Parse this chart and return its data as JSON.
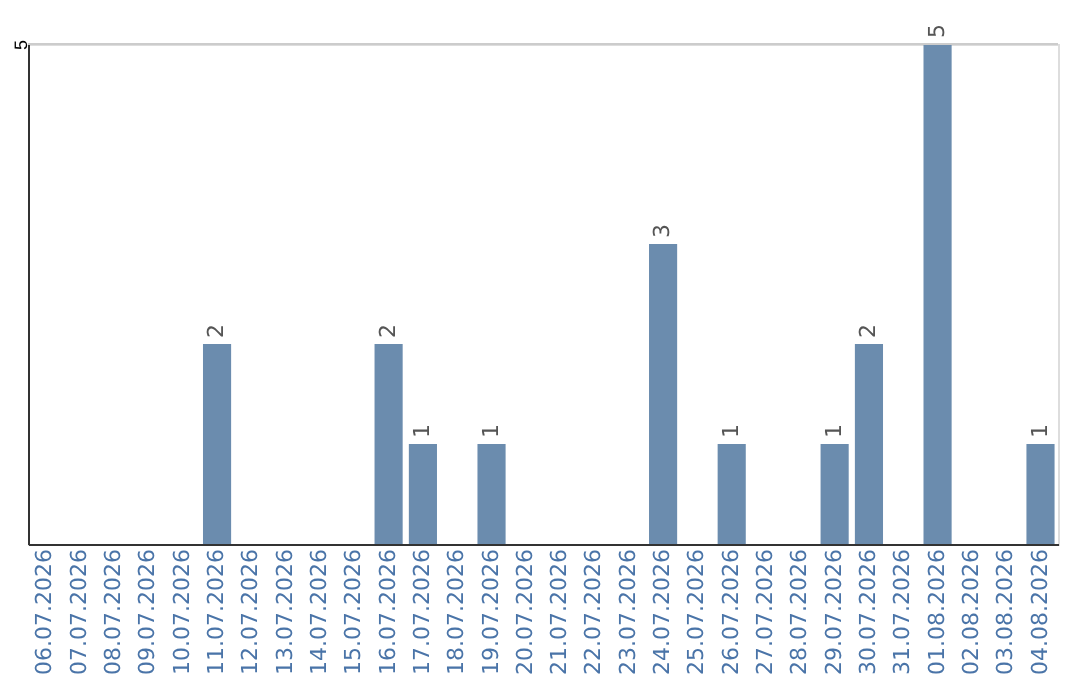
{
  "chart_data": {
    "type": "bar",
    "categories": [
      "06.07.2026",
      "07.07.2026",
      "08.07.2026",
      "09.07.2026",
      "10.07.2026",
      "11.07.2026",
      "12.07.2026",
      "13.07.2026",
      "14.07.2026",
      "15.07.2026",
      "16.07.2026",
      "17.07.2026",
      "18.07.2026",
      "19.07.2026",
      "20.07.2026",
      "21.07.2026",
      "22.07.2026",
      "23.07.2026",
      "24.07.2026",
      "25.07.2026",
      "26.07.2026",
      "27.07.2026",
      "28.07.2026",
      "29.07.2026",
      "30.07.2026",
      "31.07.2026",
      "01.08.2026",
      "02.08.2026",
      "03.08.2026",
      "04.08.2026"
    ],
    "values": [
      null,
      null,
      null,
      null,
      null,
      2,
      null,
      null,
      null,
      null,
      2,
      1,
      null,
      1,
      null,
      null,
      null,
      null,
      3,
      null,
      1,
      null,
      null,
      1,
      2,
      null,
      5,
      null,
      null,
      1
    ],
    "color": "#6b8cae",
    "ylim": [
      0,
      5
    ],
    "yticks": [
      5
    ],
    "data_labels": true
  }
}
